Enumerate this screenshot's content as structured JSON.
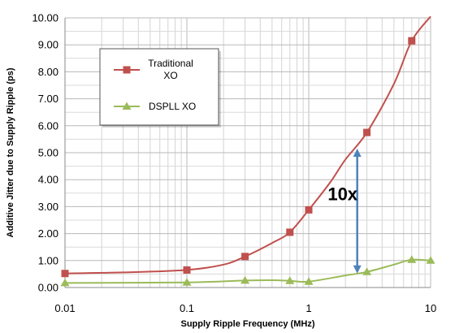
{
  "chart_data": {
    "type": "line",
    "xlabel": "Supply Ripple Frequency (MHz)",
    "ylabel": "Additive Jitter due to Supply Ripple (ps)",
    "xscale": "log",
    "xlim": [
      0.01,
      10
    ],
    "ylim": [
      0,
      10
    ],
    "grid": true,
    "legend_position": "top-left",
    "xticks": [
      0.01,
      0.1,
      1,
      10
    ],
    "xtick_labels": [
      "0.01",
      "0.1",
      "1",
      "10"
    ],
    "yticks": [
      0,
      1,
      2,
      3,
      4,
      5,
      6,
      7,
      8,
      9,
      10
    ],
    "ytick_labels": [
      "0.00",
      "1.00",
      "2.00",
      "3.00",
      "4.00",
      "5.00",
      "6.00",
      "7.00",
      "8.00",
      "9.00",
      "10.00"
    ],
    "series": [
      {
        "name": "Traditional XO",
        "name_lines": [
          "Traditional",
          "XO"
        ],
        "color": "#c0504d",
        "marker": "square",
        "curve_x": [
          0.01,
          0.03,
          0.1,
          0.2,
          0.3,
          0.5,
          0.7,
          1,
          1.5,
          2,
          3,
          5,
          7,
          10
        ],
        "curve_y": [
          0.52,
          0.56,
          0.65,
          0.85,
          1.15,
          1.65,
          2.05,
          2.88,
          3.9,
          4.75,
          5.75,
          7.55,
          9.15,
          10.05
        ],
        "points_x": [
          0.01,
          0.1,
          0.3,
          0.7,
          1,
          3,
          7
        ],
        "points_y": [
          0.52,
          0.65,
          1.15,
          2.05,
          2.88,
          5.75,
          9.15
        ]
      },
      {
        "name": "DSPLL XO",
        "name_lines": [
          "DSPLL XO"
        ],
        "color": "#9bbb59",
        "marker": "triangle",
        "curve_x": [
          0.01,
          0.1,
          0.3,
          0.5,
          0.7,
          1,
          2,
          3,
          5,
          7,
          10
        ],
        "curve_y": [
          0.17,
          0.19,
          0.26,
          0.27,
          0.25,
          0.22,
          0.45,
          0.58,
          0.85,
          1.03,
          1.0
        ],
        "points_x": [
          0.01,
          0.1,
          0.3,
          0.7,
          1,
          3,
          7,
          10
        ],
        "points_y": [
          0.17,
          0.19,
          0.26,
          0.25,
          0.22,
          0.58,
          1.03,
          1.0
        ]
      }
    ],
    "annotations": [
      {
        "type": "double-arrow",
        "text": "10x",
        "x": 2.5,
        "y_from": 0.52,
        "y_to": 5.15,
        "color": "#4f81bd"
      }
    ]
  }
}
